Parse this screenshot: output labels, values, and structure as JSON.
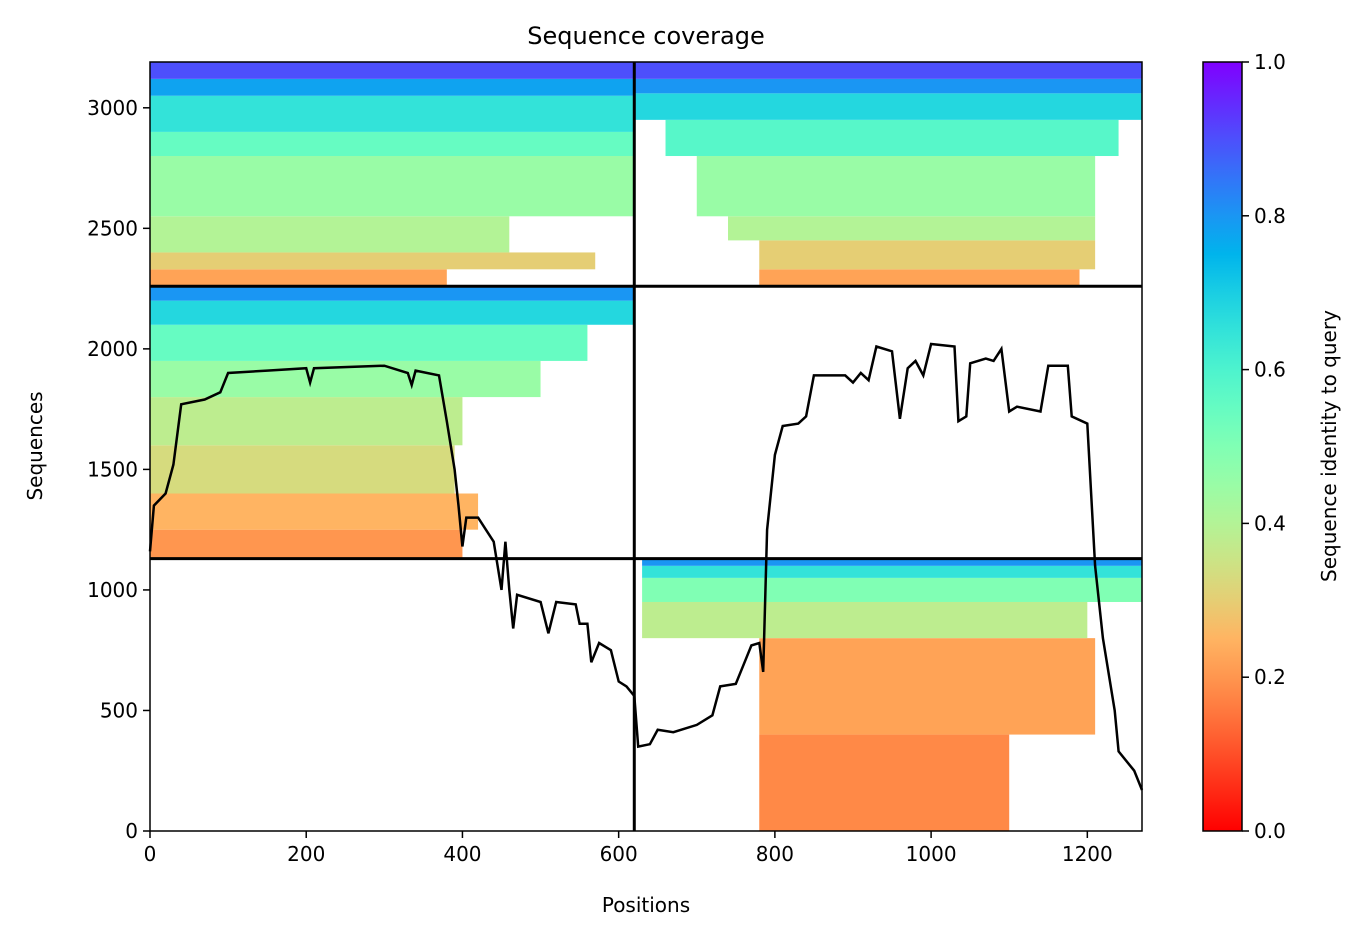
{
  "chart_data": {
    "type": "coverage",
    "title": "Sequence coverage",
    "xlabel": "Positions",
    "ylabel": "Sequences",
    "colorbar_label": "Sequence identity to query",
    "xlim": [
      0,
      1270
    ],
    "ylim": [
      0,
      3190
    ],
    "xticks": [
      0,
      200,
      400,
      600,
      800,
      1000,
      1200
    ],
    "yticks": [
      0,
      500,
      1000,
      1500,
      2000,
      2500,
      3000
    ],
    "clim": [
      0,
      1
    ],
    "cticks": [
      {
        "value": 0,
        "label": "0.0"
      },
      {
        "value": 0.2,
        "label": "0.2"
      },
      {
        "value": 0.4,
        "label": "0.4"
      },
      {
        "value": 0.6,
        "label": "0.6"
      },
      {
        "value": 0.8,
        "label": "0.8"
      },
      {
        "value": 1,
        "label": "1.0"
      }
    ],
    "colormap": "rainbow_r",
    "line_color": "#000000",
    "block_edges_x": [
      620
    ],
    "block_edges_y": [
      1130,
      2260
    ],
    "strips": [
      {
        "x": [
          0,
          380
        ],
        "y": [
          2260,
          2330
        ],
        "identity": 0.22
      },
      {
        "x": [
          0,
          570
        ],
        "y": [
          2330,
          2400
        ],
        "identity": 0.3
      },
      {
        "x": [
          0,
          460
        ],
        "y": [
          2400,
          2550
        ],
        "identity": 0.4
      },
      {
        "x": [
          0,
          620
        ],
        "y": [
          2550,
          2800
        ],
        "identity": 0.45
      },
      {
        "x": [
          0,
          620
        ],
        "y": [
          2800,
          2900
        ],
        "identity": 0.55
      },
      {
        "x": [
          0,
          620
        ],
        "y": [
          2900,
          3050
        ],
        "identity": 0.65
      },
      {
        "x": [
          0,
          620
        ],
        "y": [
          3050,
          3120
        ],
        "identity": 0.78
      },
      {
        "x": [
          0,
          620
        ],
        "y": [
          3120,
          3190
        ],
        "identity": 0.9
      },
      {
        "x": [
          780,
          1190
        ],
        "y": [
          2260,
          2330
        ],
        "identity": 0.22
      },
      {
        "x": [
          780,
          1210
        ],
        "y": [
          2330,
          2450
        ],
        "identity": 0.3
      },
      {
        "x": [
          740,
          1210
        ],
        "y": [
          2450,
          2550
        ],
        "identity": 0.4
      },
      {
        "x": [
          700,
          1210
        ],
        "y": [
          2550,
          2800
        ],
        "identity": 0.45
      },
      {
        "x": [
          660,
          1240
        ],
        "y": [
          2800,
          2950
        ],
        "identity": 0.58
      },
      {
        "x": [
          620,
          1270
        ],
        "y": [
          2950,
          3060
        ],
        "identity": 0.68
      },
      {
        "x": [
          620,
          1270
        ],
        "y": [
          3060,
          3120
        ],
        "identity": 0.8
      },
      {
        "x": [
          620,
          1270
        ],
        "y": [
          3120,
          3190
        ],
        "identity": 0.9
      },
      {
        "x": [
          0,
          400
        ],
        "y": [
          1130,
          1250
        ],
        "identity": 0.2
      },
      {
        "x": [
          0,
          420
        ],
        "y": [
          1250,
          1400
        ],
        "identity": 0.25
      },
      {
        "x": [
          0,
          390
        ],
        "y": [
          1400,
          1600
        ],
        "identity": 0.33
      },
      {
        "x": [
          0,
          400
        ],
        "y": [
          1600,
          1800
        ],
        "identity": 0.38
      },
      {
        "x": [
          0,
          500
        ],
        "y": [
          1800,
          1950
        ],
        "identity": 0.45
      },
      {
        "x": [
          0,
          560
        ],
        "y": [
          1950,
          2100
        ],
        "identity": 0.55
      },
      {
        "x": [
          0,
          620
        ],
        "y": [
          2100,
          2200
        ],
        "identity": 0.68
      },
      {
        "x": [
          0,
          620
        ],
        "y": [
          2200,
          2260
        ],
        "identity": 0.8
      },
      {
        "x": [
          780,
          1100
        ],
        "y": [
          0,
          400
        ],
        "identity": 0.18
      },
      {
        "x": [
          780,
          1210
        ],
        "y": [
          400,
          800
        ],
        "identity": 0.22
      },
      {
        "x": [
          630,
          1200
        ],
        "y": [
          800,
          950
        ],
        "identity": 0.38
      },
      {
        "x": [
          630,
          1270
        ],
        "y": [
          950,
          1050
        ],
        "identity": 0.5
      },
      {
        "x": [
          630,
          1270
        ],
        "y": [
          1050,
          1100
        ],
        "identity": 0.65
      },
      {
        "x": [
          630,
          1270
        ],
        "y": [
          1100,
          1130
        ],
        "identity": 0.8
      }
    ],
    "x": [
      0,
      5,
      20,
      30,
      40,
      70,
      90,
      100,
      150,
      200,
      205,
      210,
      300,
      330,
      335,
      340,
      370,
      380,
      390,
      395,
      400,
      405,
      420,
      430,
      440,
      445,
      450,
      455,
      460,
      465,
      470,
      500,
      510,
      520,
      545,
      550,
      560,
      565,
      575,
      590,
      600,
      610,
      620,
      625,
      640,
      650,
      670,
      700,
      720,
      730,
      750,
      760,
      770,
      780,
      785,
      790,
      800,
      810,
      830,
      840,
      850,
      890,
      900,
      910,
      920,
      930,
      950,
      960,
      970,
      980,
      990,
      1000,
      1030,
      1035,
      1045,
      1050,
      1070,
      1080,
      1090,
      1100,
      1110,
      1140,
      1150,
      1175,
      1180,
      1200,
      1210,
      1220,
      1235,
      1240,
      1260,
      1270
    ],
    "values": [
      1160,
      1350,
      1400,
      1520,
      1770,
      1790,
      1820,
      1900,
      1910,
      1920,
      1860,
      1920,
      1930,
      1900,
      1850,
      1910,
      1890,
      1700,
      1500,
      1350,
      1180,
      1300,
      1300,
      1250,
      1200,
      1100,
      1000,
      1200,
      1000,
      840,
      980,
      950,
      820,
      950,
      940,
      860,
      860,
      700,
      780,
      750,
      620,
      600,
      560,
      350,
      360,
      420,
      410,
      440,
      480,
      600,
      610,
      690,
      770,
      780,
      660,
      1250,
      1560,
      1680,
      1690,
      1720,
      1890,
      1890,
      1860,
      1900,
      1870,
      2010,
      1990,
      1710,
      1920,
      1950,
      1890,
      2020,
      2010,
      1700,
      1720,
      1940,
      1960,
      1950,
      2000,
      1740,
      1760,
      1740,
      1930,
      1930,
      1720,
      1690,
      1100,
      800,
      500,
      330,
      250,
      170
    ]
  }
}
